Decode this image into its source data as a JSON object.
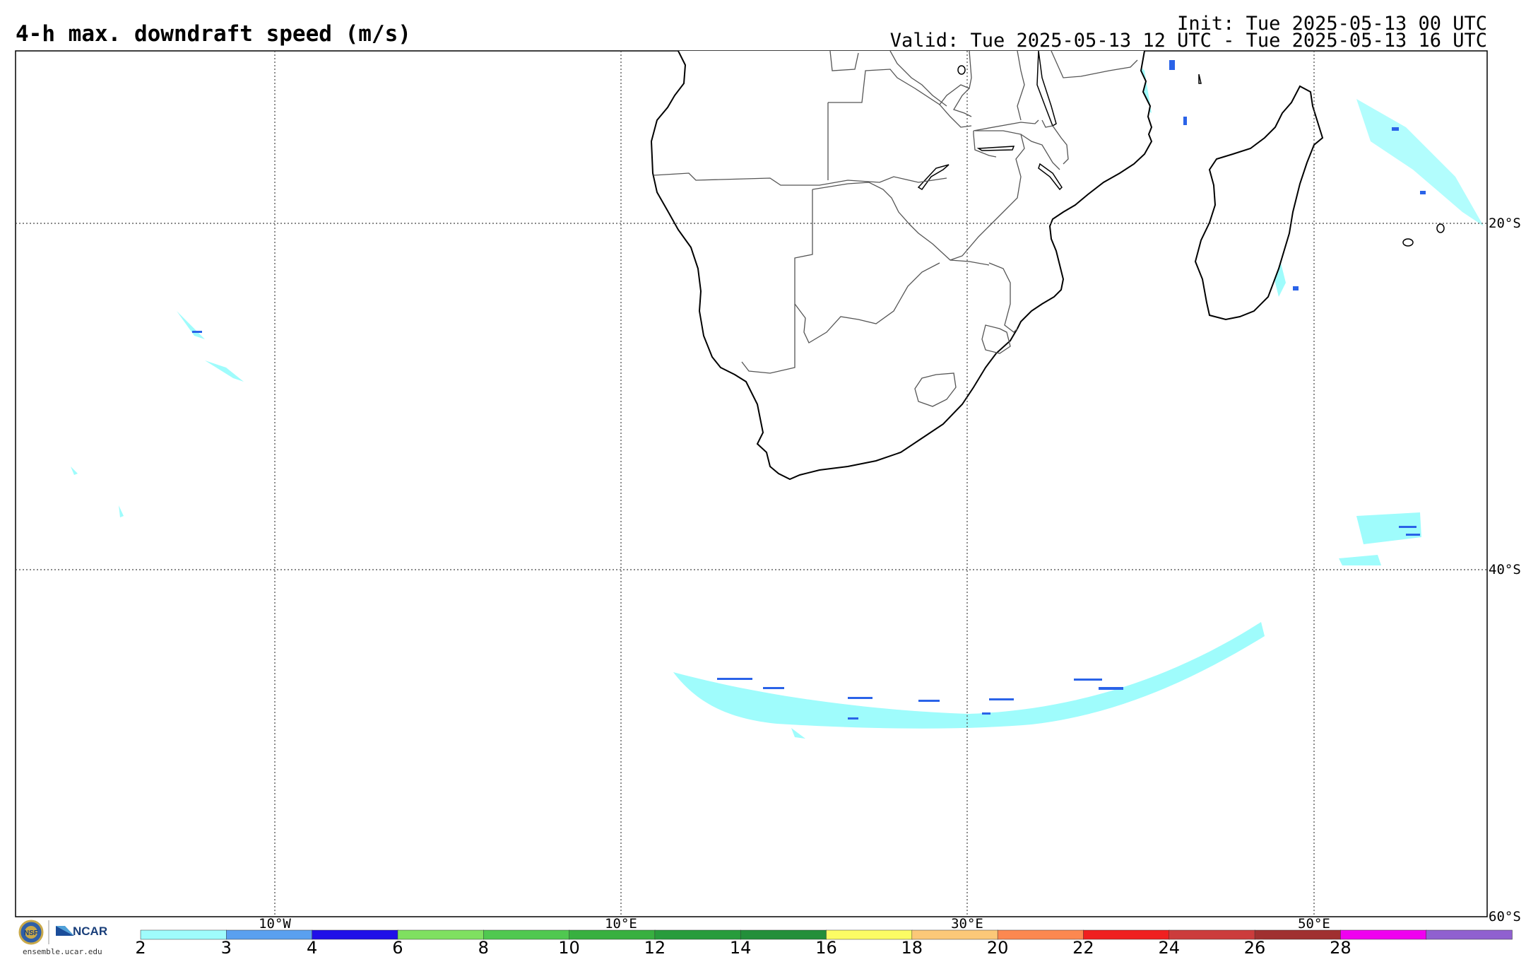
{
  "header": {
    "title": "4-h max. downdraft speed (m/s)",
    "init": "Init: Tue 2025-05-13 00 UTC",
    "valid": "Valid: Tue 2025-05-13 12 UTC - Tue 2025-05-13 16 UTC"
  },
  "map": {
    "projection": "latitude-longitude",
    "region": "Southern Africa and South Atlantic / SW Indian Ocean",
    "lat_labels": [
      "20°S",
      "40°S",
      "60°S"
    ],
    "lon_labels": [
      "10°W",
      "10°E",
      "30°E",
      "50°E"
    ],
    "gridlines": "dotted"
  },
  "colorbar": {
    "ticks": [
      "2",
      "3",
      "4",
      "6",
      "8",
      "10",
      "12",
      "14",
      "16",
      "18",
      "20",
      "22",
      "24",
      "26",
      "28"
    ],
    "colors": [
      "#9ffcfc",
      "#5aa0f0",
      "#2010e8",
      "#7fe060",
      "#50c850",
      "#38b040",
      "#289c3c",
      "#238f3a",
      "#fcfc64",
      "#fcc878",
      "#fc8850",
      "#f02020",
      "#cc3c3c",
      "#a03030",
      "#f000f0",
      "#9060d0"
    ]
  },
  "footer": {
    "logo_org": "NCAR",
    "logo_url_text": "ensemble.ucar.edu"
  },
  "icons": [
    "nsf-logo-icon",
    "ncar-logo-icon"
  ]
}
